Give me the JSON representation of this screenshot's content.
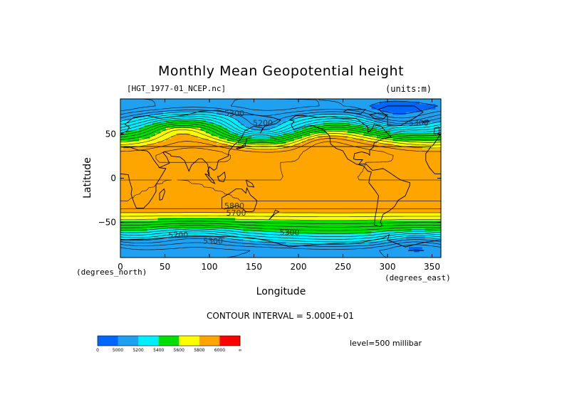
{
  "chart_data": {
    "type": "heatmap",
    "title": "Monthly Mean Geopotential height",
    "subtitle_left": "[HGT_1977-01_NCEP.nc]",
    "subtitle_right": "(units:m)",
    "xlabel": "Longitude",
    "ylabel": "Latitude",
    "x_note": "(degrees_east)",
    "y_note": "(degrees_north)",
    "xlim": [
      0,
      360
    ],
    "ylim": [
      -90,
      90
    ],
    "x_ticks": [
      0,
      50,
      100,
      150,
      200,
      250,
      300,
      350
    ],
    "y_ticks": [
      50,
      0,
      -50
    ],
    "y_tick_labels": [
      "50",
      "0",
      "−50"
    ],
    "contour_interval_text": "CONTOUR INTERVAL = 5.000E+01",
    "level_text": "level=500 millibar",
    "contour_labels": [
      {
        "text": "5300",
        "lon": 128,
        "lat": 73
      },
      {
        "text": "5300",
        "lon": 335,
        "lat": 62
      },
      {
        "text": "5300",
        "lon": 190,
        "lat": -62
      },
      {
        "text": "5300",
        "lon": 104,
        "lat": -72
      },
      {
        "text": "5200",
        "lon": 65,
        "lat": -65
      },
      {
        "text": "5200",
        "lon": 160,
        "lat": 62
      },
      {
        "text": "5800",
        "lon": 128,
        "lat": -32
      },
      {
        "text": "5700",
        "lon": 130,
        "lat": -40
      }
    ],
    "colorbar": {
      "bins": [
        {
          "color": "#0066ff"
        },
        {
          "color": "#20a0f0"
        },
        {
          "color": "#00eeff"
        },
        {
          "color": "#00dd00"
        },
        {
          "color": "#ffff00"
        },
        {
          "color": "#ffa500"
        },
        {
          "color": "#ff0000"
        }
      ],
      "labels": [
        "0",
        "5000",
        "5200",
        "5400",
        "5600",
        "5800",
        "6000",
        "∞"
      ]
    }
  }
}
